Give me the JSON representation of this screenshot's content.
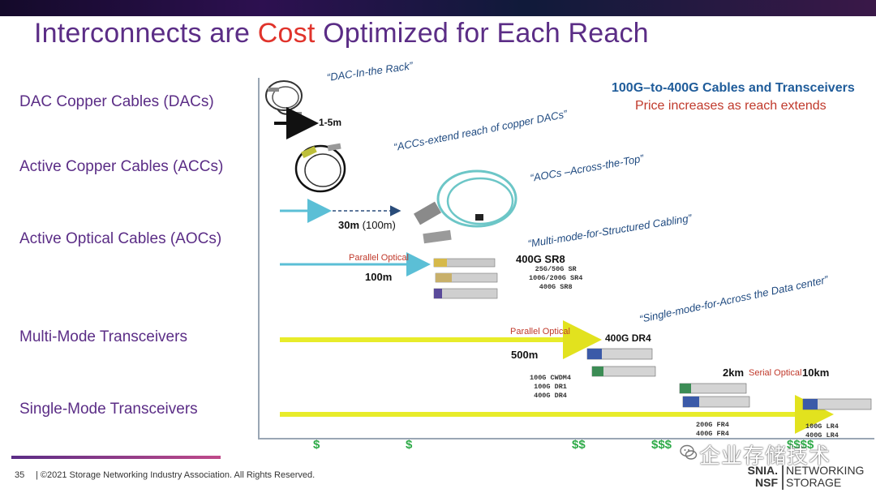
{
  "title": {
    "pre": "Interconnects are ",
    "accent": "Cost",
    "post": " Optimized for Each Reach"
  },
  "categories": [
    "DAC Copper Cables (DACs)",
    "Active Copper Cables (ACCs)",
    "Active Optical Cables (AOCs)",
    "Multi-Mode Transceivers",
    "Single-Mode Transceivers"
  ],
  "quotes": {
    "dac": "“DAC-In-the Rack”",
    "acc": "“ACCs-extend reach of copper DACs”",
    "aoc": "“AOCs –Across-the-Top”",
    "mm": "“Multi-mode-for-Structured Cabling”",
    "sm": "“Single-mode-for-Across the Data center”"
  },
  "legend": {
    "heading": "100G–to-400G Cables and Transceivers",
    "subheading": "Price increases as reach extends"
  },
  "reach_labels": {
    "dac": "1-5m",
    "aoc_main": "30m",
    "aoc_extra": "(100m)",
    "mm": "100m",
    "dr": "500m",
    "sm_2km": "2km",
    "sm_10km": "10km"
  },
  "parallel_optical": [
    "Parallel Optical",
    "Parallel Optical"
  ],
  "serial_optical": "Serial Optical",
  "products": {
    "sr8_title": "400G SR8",
    "sr8_list": "25G/50G SR\n100G/200G SR4\n400G SR8",
    "dr4_title": "400G DR4",
    "dr_list": "100G CWDM4\n100G DR1\n400G DR4",
    "fr_list": "200G FR4\n400G FR4",
    "lr_list": "100G LR4\n400G LR4"
  },
  "cost_axis": [
    "$",
    "$",
    "$$",
    "$$$",
    "$$$$"
  ],
  "footer": {
    "page": "35",
    "copyright": "| ©2021 Storage Networking Industry Association. All Rights Reserved."
  },
  "watermark": "企业存储技术",
  "logo": {
    "snia_line1": "SNIA.",
    "snia_line2": "NSF",
    "net_line1": "NETWORKING",
    "net_line2": "STORAGE"
  },
  "colors": {
    "title_purple": "#5b2d86",
    "title_accent": "#e0332b",
    "arrow_teal": "#5bbfd6",
    "arrow_yellow": "#e8ec2a",
    "cost_green": "#2eaa48",
    "aoc_cable": "#6cc6c7"
  }
}
